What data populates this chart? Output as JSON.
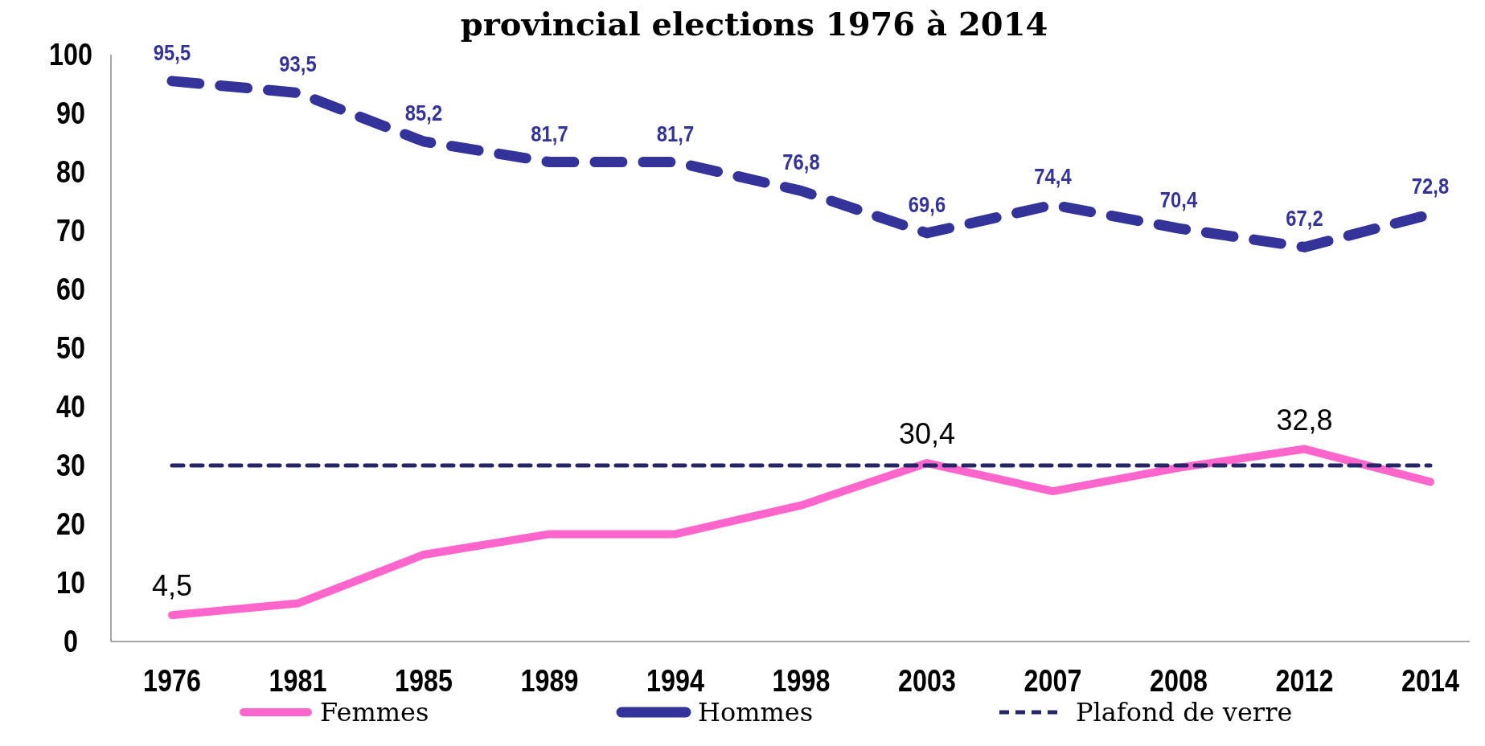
{
  "chart_data": {
    "type": "line",
    "title": "provincial elections 1976 à 2014",
    "categories": [
      "1976",
      "1981",
      "1985",
      "1989",
      "1994",
      "1998",
      "2003",
      "2007",
      "2008",
      "2012",
      "2014"
    ],
    "series": [
      {
        "name": "Femmes",
        "color": "#ff66cc",
        "line_style": "solid",
        "values": [
          4.5,
          6.5,
          14.8,
          18.3,
          18.3,
          23.2,
          30.4,
          25.6,
          29.6,
          32.8,
          27.2
        ],
        "value_labels": [
          "4,5",
          null,
          null,
          null,
          null,
          null,
          "30,4",
          null,
          null,
          "32,8",
          null
        ]
      },
      {
        "name": "Hommes",
        "color": "#333399",
        "line_style": "dashed",
        "values": [
          95.5,
          93.5,
          85.2,
          81.7,
          81.7,
          76.8,
          69.6,
          74.4,
          70.4,
          67.2,
          72.8
        ],
        "value_labels": [
          "95,5",
          "93,5",
          "85,2",
          "81,7",
          "81,7",
          "76,8",
          "69,6",
          "74,4",
          "70,4",
          "67,2",
          "72,8"
        ]
      },
      {
        "name": "Plafond de verre",
        "color": "#262666",
        "line_style": "dotted",
        "values": [
          30,
          30,
          30,
          30,
          30,
          30,
          30,
          30,
          30,
          30,
          30
        ]
      }
    ],
    "ylim": [
      0,
      100
    ],
    "yticks": [
      0,
      10,
      20,
      30,
      40,
      50,
      60,
      70,
      80,
      90,
      100
    ],
    "grid": false,
    "legend": "bottom",
    "marker": "none"
  }
}
